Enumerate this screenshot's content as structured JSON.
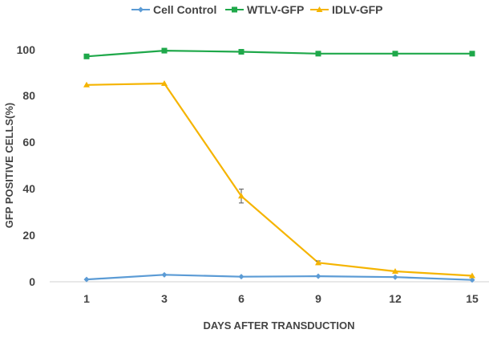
{
  "chart_data": {
    "type": "line",
    "title": "",
    "xlabel": "DAYS AFTER TRANSDUCTION",
    "ylabel": "GFP POSITIVE CELLS(%)",
    "categories": [
      "1",
      "3",
      "6",
      "9",
      "12",
      "15"
    ],
    "ylim": [
      0,
      100
    ],
    "yticks": [
      "0",
      "20",
      "40",
      "60",
      "80",
      "100"
    ],
    "grid": false,
    "legend_position": "top",
    "series": [
      {
        "name": "Cell Control",
        "color": "#5b9bd5",
        "marker": "diamond",
        "values": [
          1.0,
          3.0,
          2.2,
          2.4,
          2.0,
          0.8
        ],
        "error": [
          0,
          0,
          0,
          0,
          0,
          0
        ]
      },
      {
        "name": "WTLV-GFP",
        "color": "#1fa84a",
        "marker": "square",
        "values": [
          97.3,
          99.8,
          99.3,
          98.5,
          98.5,
          98.5
        ],
        "error": [
          0,
          0,
          0,
          0,
          0,
          0
        ]
      },
      {
        "name": "IDLV-GFP",
        "color": "#f5b400",
        "marker": "triangle",
        "values": [
          85.0,
          85.6,
          37.0,
          8.2,
          4.5,
          2.6
        ],
        "error": [
          0,
          0,
          3.0,
          0.8,
          0,
          0
        ]
      }
    ]
  }
}
